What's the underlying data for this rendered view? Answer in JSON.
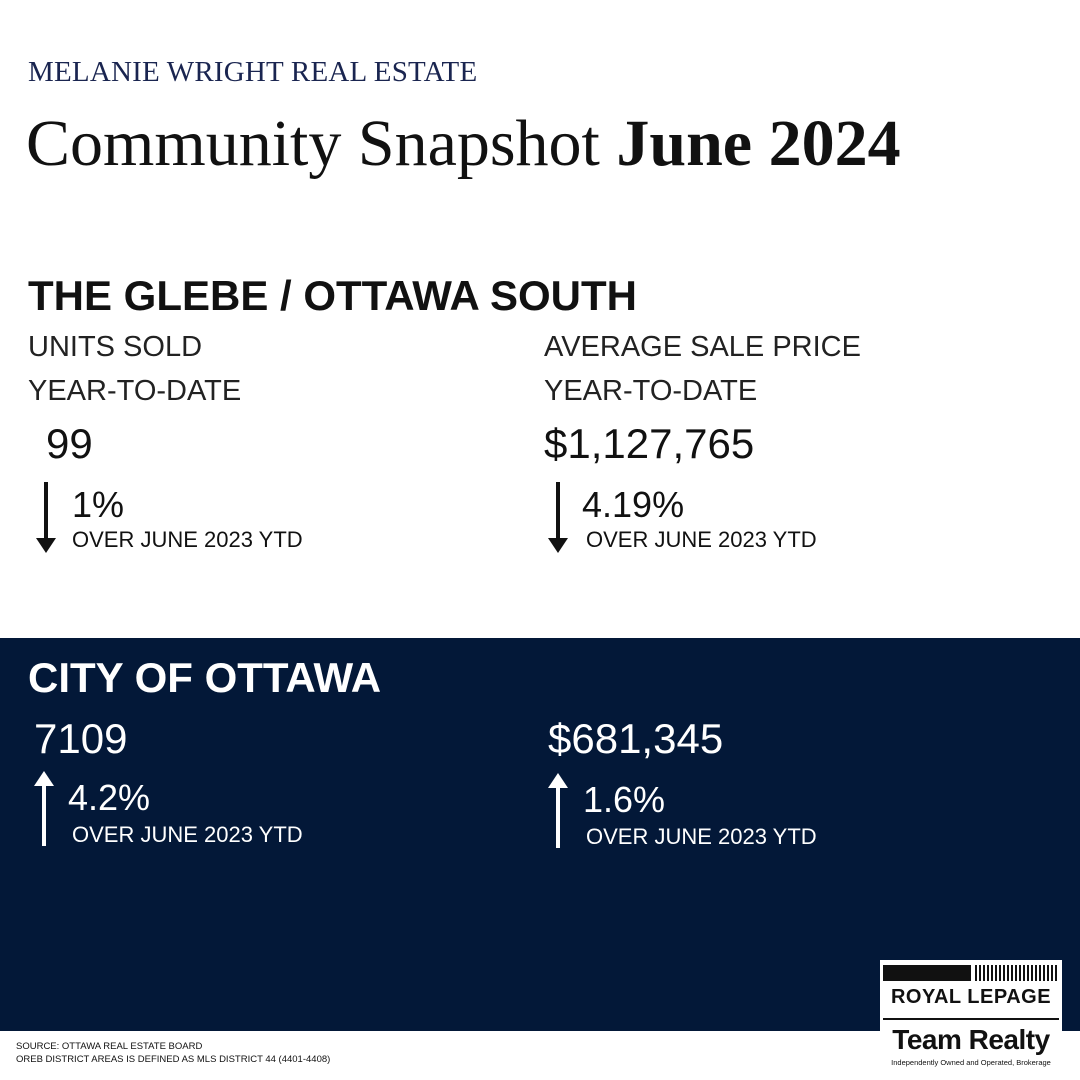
{
  "brand": "MELANIE WRIGHT REAL ESTATE",
  "title": {
    "prefix": "Community Snapshot",
    "highlight": "June 2024"
  },
  "glebe": {
    "heading": "THE GLEBE / OTTAWA SOUTH",
    "units": {
      "label": "UNITS SOLD",
      "period": "YEAR-TO-DATE",
      "value": "99",
      "change": "1%",
      "direction": "down",
      "comparison": "OVER JUNE 2023 YTD"
    },
    "price": {
      "label": "AVERAGE SALE PRICE",
      "period": "YEAR-TO-DATE",
      "value": "$1,127,765",
      "change": "4.19%",
      "direction": "down",
      "comparison": "OVER JUNE 2023 YTD"
    }
  },
  "ottawa": {
    "heading": "CITY OF OTTAWA",
    "units": {
      "value": "7109",
      "change": "4.2%",
      "direction": "up",
      "comparison": "OVER JUNE 2023 YTD"
    },
    "price": {
      "value": "$681,345",
      "change": "1.6%",
      "direction": "up",
      "comparison": "OVER JUNE 2023 YTD"
    }
  },
  "footer": {
    "source": "SOURCE: OTTAWA REAL ESTATE BOARD",
    "note": "OREB DISTRICT AREAS IS DEFINED AS MLS DISTRICT 44 (4401-4408)"
  },
  "logo": {
    "line1": "ROYAL LEPAGE",
    "line2": "Team Realty",
    "tagline": "Independently Owned and Operated, Brokerage"
  },
  "colors": {
    "navy": "#031838",
    "brand_text": "#1a2550"
  }
}
